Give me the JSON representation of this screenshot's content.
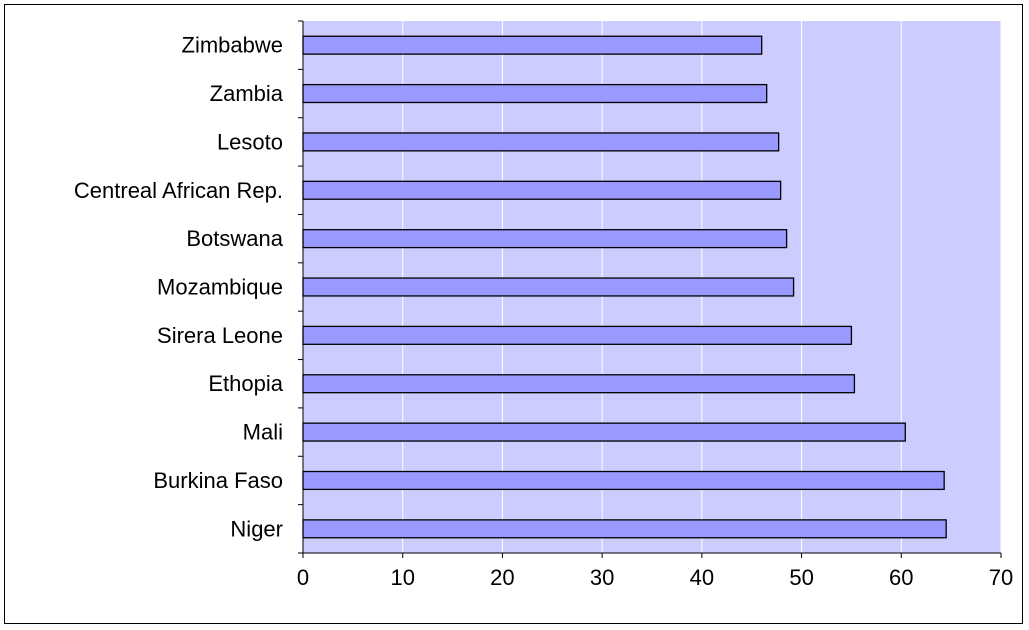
{
  "chart_data": {
    "type": "bar",
    "orientation": "horizontal",
    "title": "",
    "xlabel": "",
    "ylabel": "",
    "categories": [
      "Zimbabwe",
      "Zambia",
      "Lesoto",
      "Centreal African Rep.",
      "Botswana",
      "Mozambique",
      "Sirera Leone",
      "Ethopia",
      "Mali",
      "Burkina Faso",
      "Niger"
    ],
    "values": [
      46,
      46.5,
      47.7,
      47.9,
      48.5,
      49.2,
      55,
      55.3,
      60.4,
      64.3,
      64.5
    ],
    "xlim": [
      0,
      70
    ],
    "x_ticks": [
      "0",
      "10",
      "20",
      "30",
      "40",
      "50",
      "60",
      "70"
    ],
    "grid": "vertical",
    "legend": "none",
    "colors": {
      "plot_background": "#ccccff",
      "bar_fill": "#9999ff",
      "bar_stroke": "#000000",
      "gridline": "#ffffff"
    }
  }
}
